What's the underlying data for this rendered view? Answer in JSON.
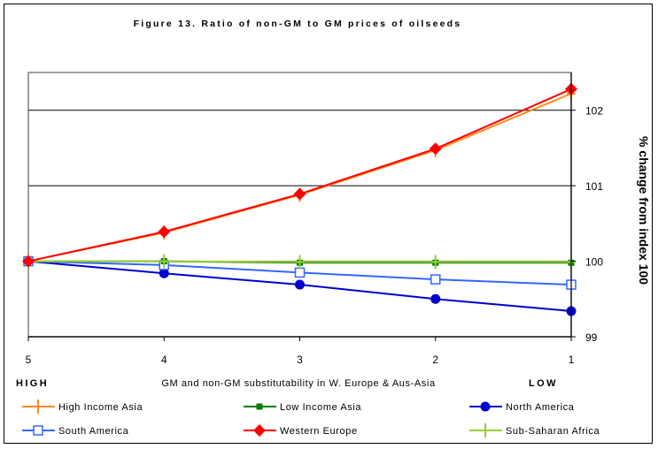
{
  "chart_data": {
    "type": "line",
    "title": "Figure 13. Ratio of non-GM to GM prices of oilseeds",
    "xlabel": "GM and non-GM substitutability in W. Europe & Aus-Asia",
    "ylabel": "% change from index 100",
    "x_end_labels": {
      "left": "HIGH",
      "right": "LOW"
    },
    "categories": [
      "5",
      "4",
      "3",
      "2",
      "1"
    ],
    "x": [
      5,
      4,
      3,
      2,
      1
    ],
    "ylim": [
      99,
      102.5
    ],
    "y_ticks": [
      "99",
      "100",
      "101",
      "102"
    ],
    "grid": "horizontal",
    "legend_position": "bottom",
    "series": [
      {
        "name": "High Income Asia",
        "color": "#FF8C1A",
        "marker": "plus",
        "values": [
          100,
          100.38,
          100.88,
          101.47,
          102.22
        ]
      },
      {
        "name": "Low Income Asia",
        "color": "#008000",
        "marker": "square-filled",
        "values": [
          100,
          100.0,
          99.98,
          99.98,
          99.98
        ]
      },
      {
        "name": "North America",
        "color": "#0000CC",
        "marker": "circle",
        "values": [
          100,
          99.84,
          99.69,
          99.5,
          99.34
        ]
      },
      {
        "name": "South America",
        "color": "#3366FF",
        "marker": "square-open",
        "values": [
          100,
          99.95,
          99.85,
          99.76,
          99.69
        ]
      },
      {
        "name": "Western Europe",
        "color": "#FF0000",
        "marker": "diamond",
        "values": [
          100,
          100.39,
          100.89,
          101.49,
          102.28
        ]
      },
      {
        "name": "Sub-Saharan Africa",
        "color": "#99CC33",
        "marker": "plus",
        "values": [
          100,
          100.0,
          99.99,
          99.99,
          99.99
        ]
      }
    ]
  }
}
